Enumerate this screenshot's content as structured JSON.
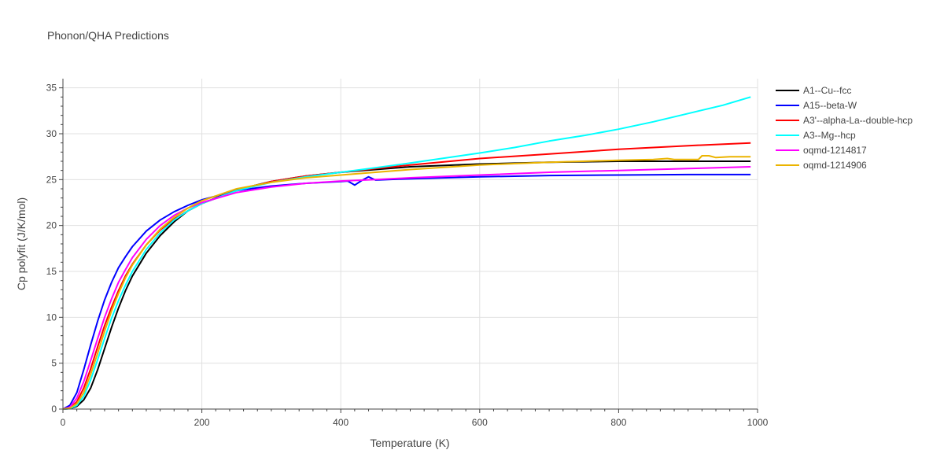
{
  "chart_data": {
    "type": "line",
    "title": "Phonon/QHA Predictions",
    "xlabel": "Temperature (K)",
    "ylabel": "Cp polyfit (J/K/mol)",
    "xlim": [
      0,
      1000
    ],
    "ylim": [
      0,
      36
    ],
    "xticks": [
      0,
      200,
      400,
      600,
      800,
      1000
    ],
    "yticks": [
      0,
      5,
      10,
      15,
      20,
      25,
      30,
      35
    ],
    "grid": true,
    "legend_position": "top-right",
    "series": [
      {
        "name": "A1--Cu--fcc",
        "color": "#000000",
        "x": [
          0,
          10,
          20,
          30,
          40,
          50,
          60,
          70,
          80,
          90,
          100,
          120,
          140,
          160,
          180,
          200,
          250,
          300,
          350,
          400,
          450,
          500,
          600,
          700,
          800,
          900,
          990
        ],
        "y": [
          0,
          0.05,
          0.3,
          1.0,
          2.3,
          4.3,
          6.6,
          8.9,
          11.0,
          12.9,
          14.5,
          17.0,
          18.9,
          20.4,
          21.6,
          22.4,
          23.9,
          24.8,
          25.4,
          25.8,
          26.1,
          26.4,
          26.7,
          26.9,
          27.0,
          27.0,
          27.0
        ]
      },
      {
        "name": "A15--beta-W",
        "color": "#0000ff",
        "x": [
          0,
          10,
          20,
          30,
          40,
          50,
          60,
          70,
          80,
          90,
          100,
          120,
          140,
          160,
          180,
          200,
          250,
          300,
          350,
          400,
          410,
          420,
          430,
          440,
          450,
          500,
          600,
          700,
          800,
          900,
          990
        ],
        "y": [
          0,
          0.4,
          1.8,
          4.3,
          7.0,
          9.6,
          11.9,
          13.8,
          15.4,
          16.6,
          17.7,
          19.4,
          20.6,
          21.5,
          22.2,
          22.8,
          23.8,
          24.3,
          24.6,
          24.8,
          24.85,
          24.4,
          24.9,
          25.3,
          24.95,
          25.1,
          25.3,
          25.45,
          25.5,
          25.55,
          25.55
        ]
      },
      {
        "name": "A3'--alpha-La--double-hcp",
        "color": "#ff0000",
        "x": [
          0,
          10,
          20,
          30,
          40,
          50,
          60,
          70,
          80,
          90,
          100,
          120,
          140,
          160,
          180,
          200,
          250,
          300,
          350,
          400,
          450,
          500,
          600,
          700,
          800,
          900,
          990
        ],
        "y": [
          0,
          0.1,
          0.8,
          2.3,
          4.4,
          6.8,
          9.1,
          11.1,
          12.9,
          14.5,
          15.8,
          17.9,
          19.5,
          20.7,
          21.6,
          22.4,
          23.8,
          24.8,
          25.4,
          25.8,
          26.2,
          26.6,
          27.3,
          27.8,
          28.3,
          28.7,
          29.0
        ]
      },
      {
        "name": "A3--Mg--hcp",
        "color": "#00ffff",
        "x": [
          0,
          10,
          20,
          30,
          40,
          50,
          60,
          70,
          80,
          90,
          100,
          120,
          140,
          160,
          180,
          200,
          250,
          300,
          350,
          400,
          450,
          500,
          600,
          650,
          700,
          750,
          800,
          850,
          900,
          950,
          990
        ],
        "y": [
          0,
          0.05,
          0.4,
          1.4,
          3.2,
          5.4,
          7.7,
          9.9,
          11.8,
          13.5,
          15.0,
          17.4,
          19.2,
          20.6,
          21.6,
          22.4,
          23.8,
          24.7,
          25.3,
          25.8,
          26.3,
          26.8,
          27.9,
          28.5,
          29.2,
          29.8,
          30.5,
          31.3,
          32.2,
          33.1,
          34.0
        ]
      },
      {
        "name": "oqmd-1214817",
        "color": "#ff00ff",
        "x": [
          0,
          10,
          20,
          30,
          40,
          50,
          60,
          70,
          80,
          90,
          100,
          120,
          140,
          160,
          180,
          200,
          250,
          300,
          350,
          400,
          450,
          500,
          600,
          700,
          800,
          900,
          990
        ],
        "y": [
          0,
          0.2,
          1.2,
          3.0,
          5.3,
          7.7,
          10.0,
          12.0,
          13.8,
          15.2,
          16.5,
          18.5,
          20.0,
          21.1,
          21.9,
          22.5,
          23.6,
          24.2,
          24.6,
          24.85,
          25.0,
          25.2,
          25.5,
          25.8,
          26.0,
          26.2,
          26.4
        ]
      },
      {
        "name": "oqmd-1214906",
        "color": "#ebb400",
        "x": [
          0,
          10,
          20,
          30,
          40,
          50,
          60,
          70,
          80,
          90,
          100,
          120,
          140,
          160,
          180,
          200,
          250,
          300,
          350,
          400,
          450,
          500,
          600,
          700,
          800,
          850,
          870,
          880,
          900,
          915,
          920,
          930,
          940,
          960,
          990
        ],
        "y": [
          0,
          0.1,
          0.6,
          1.8,
          3.8,
          6.1,
          8.5,
          10.7,
          12.6,
          14.3,
          15.7,
          17.9,
          19.6,
          20.9,
          21.9,
          22.7,
          24.0,
          24.7,
          25.2,
          25.5,
          25.8,
          26.1,
          26.6,
          26.9,
          27.1,
          27.2,
          27.3,
          27.2,
          27.2,
          27.2,
          27.6,
          27.6,
          27.4,
          27.5,
          27.5
        ]
      }
    ]
  }
}
